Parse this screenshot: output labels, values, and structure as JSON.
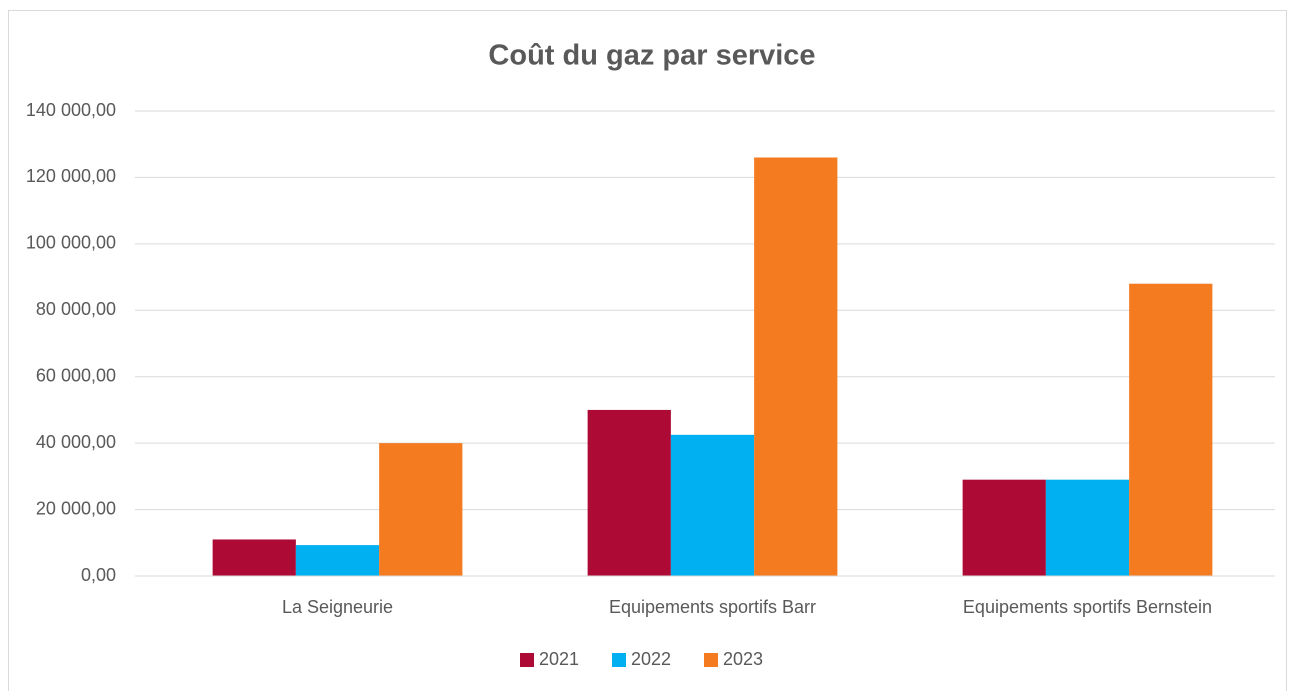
{
  "chart_data": {
    "type": "bar",
    "title": "Coût du gaz par service",
    "categories": [
      "La Seigneurie",
      "Equipements sportifs Barr",
      "Equipements sportifs Bernstein"
    ],
    "series": [
      {
        "name": "2021",
        "color": "#ae0a36",
        "values": [
          11000,
          50000,
          29000
        ]
      },
      {
        "name": "2022",
        "color": "#00b0f0",
        "values": [
          9300,
          42500,
          29000
        ]
      },
      {
        "name": "2023",
        "color": "#f47b20",
        "values": [
          40000,
          126000,
          88000
        ]
      }
    ],
    "ylim": [
      0,
      140000
    ],
    "yticks": [
      {
        "value": 0,
        "label": "0,00"
      },
      {
        "value": 20000,
        "label": "20 000,00"
      },
      {
        "value": 40000,
        "label": "40 000,00"
      },
      {
        "value": 60000,
        "label": "60 000,00"
      },
      {
        "value": 80000,
        "label": "80 000,00"
      },
      {
        "value": 100000,
        "label": "100 000,00"
      },
      {
        "value": 120000,
        "label": "120 000,00"
      },
      {
        "value": 140000,
        "label": "140 000,00"
      }
    ],
    "grid": true,
    "legend": "bottom"
  }
}
